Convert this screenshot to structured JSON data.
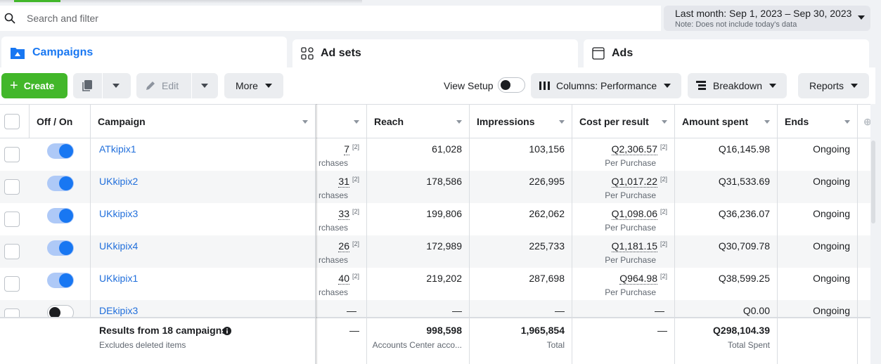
{
  "search": {
    "placeholder": "Search and filter"
  },
  "date_range": {
    "label": "Last month: Sep 1, 2023 – Sep 30, 2023",
    "note": "Note: Does not include today's data"
  },
  "tabs": [
    {
      "label": "Campaigns",
      "active": true,
      "icon": "folder-icon"
    },
    {
      "label": "Ad sets",
      "active": false,
      "icon": "grid-icon"
    },
    {
      "label": "Ads",
      "active": false,
      "icon": "ad-window-icon"
    }
  ],
  "toolbar": {
    "create_label": "Create",
    "edit_label": "Edit",
    "more_label": "More",
    "view_setup_label": "View Setup",
    "columns_label": "Columns: Performance",
    "breakdown_label": "Breakdown",
    "reports_label": "Reports"
  },
  "columns": {
    "off_on": "Off / On",
    "campaign": "Campaign",
    "reach": "Reach",
    "impressions": "Impressions",
    "cost_per_result": "Cost per result",
    "amount_spent": "Amount spent",
    "ends": "Ends"
  },
  "rows": [
    {
      "on": true,
      "campaign": "ATkipix1",
      "results": "7",
      "results_sup": "[2]",
      "results_sub": "rchases",
      "reach": "61,028",
      "impressions": "103,156",
      "cpr": "Q2,306.57",
      "cpr_sup": "[2]",
      "cpr_sub": "Per Purchase",
      "spent": "Q16,145.98",
      "ends": "Ongoing"
    },
    {
      "on": true,
      "campaign": "UKkipix2",
      "results": "31",
      "results_sup": "[2]",
      "results_sub": "rchases",
      "reach": "178,586",
      "impressions": "226,995",
      "cpr": "Q1,017.22",
      "cpr_sup": "[2]",
      "cpr_sub": "Per Purchase",
      "spent": "Q31,533.69",
      "ends": "Ongoing"
    },
    {
      "on": true,
      "campaign": "UKkipix3",
      "results": "33",
      "results_sup": "[2]",
      "results_sub": "rchases",
      "reach": "199,806",
      "impressions": "262,062",
      "cpr": "Q1,098.06",
      "cpr_sup": "[2]",
      "cpr_sub": "Per Purchase",
      "spent": "Q36,236.07",
      "ends": "Ongoing"
    },
    {
      "on": true,
      "campaign": "UKkipix4",
      "results": "26",
      "results_sup": "[2]",
      "results_sub": "rchases",
      "reach": "172,989",
      "impressions": "225,733",
      "cpr": "Q1,181.15",
      "cpr_sup": "[2]",
      "cpr_sub": "Per Purchase",
      "spent": "Q30,709.78",
      "ends": "Ongoing"
    },
    {
      "on": true,
      "campaign": "UKkipix1",
      "results": "40",
      "results_sup": "[2]",
      "results_sub": "rchases",
      "reach": "219,202",
      "impressions": "287,698",
      "cpr": "Q964.98",
      "cpr_sup": "[2]",
      "cpr_sub": "Per Purchase",
      "spent": "Q38,599.25",
      "ends": "Ongoing"
    },
    {
      "on": false,
      "campaign": "DEkipix3",
      "results": "—",
      "results_sup": "",
      "results_sub": "",
      "reach": "—",
      "impressions": "—",
      "cpr": "—",
      "cpr_sup": "",
      "cpr_sub": "",
      "spent": "Q0.00",
      "ends": "Ongoing"
    }
  ],
  "footer": {
    "title": "Results from 18 campaigns",
    "subtitle": "Excludes deleted items",
    "results": "—",
    "reach": "998,598",
    "reach_sub": "Accounts Center acco...",
    "impressions": "1,965,854",
    "impressions_sub": "Total",
    "cpr": "—",
    "spent": "Q298,104.39",
    "spent_sub": "Total Spent"
  },
  "colors": {
    "accent": "#1877f2",
    "create_green": "#42b72a",
    "link": "#216fdb"
  }
}
